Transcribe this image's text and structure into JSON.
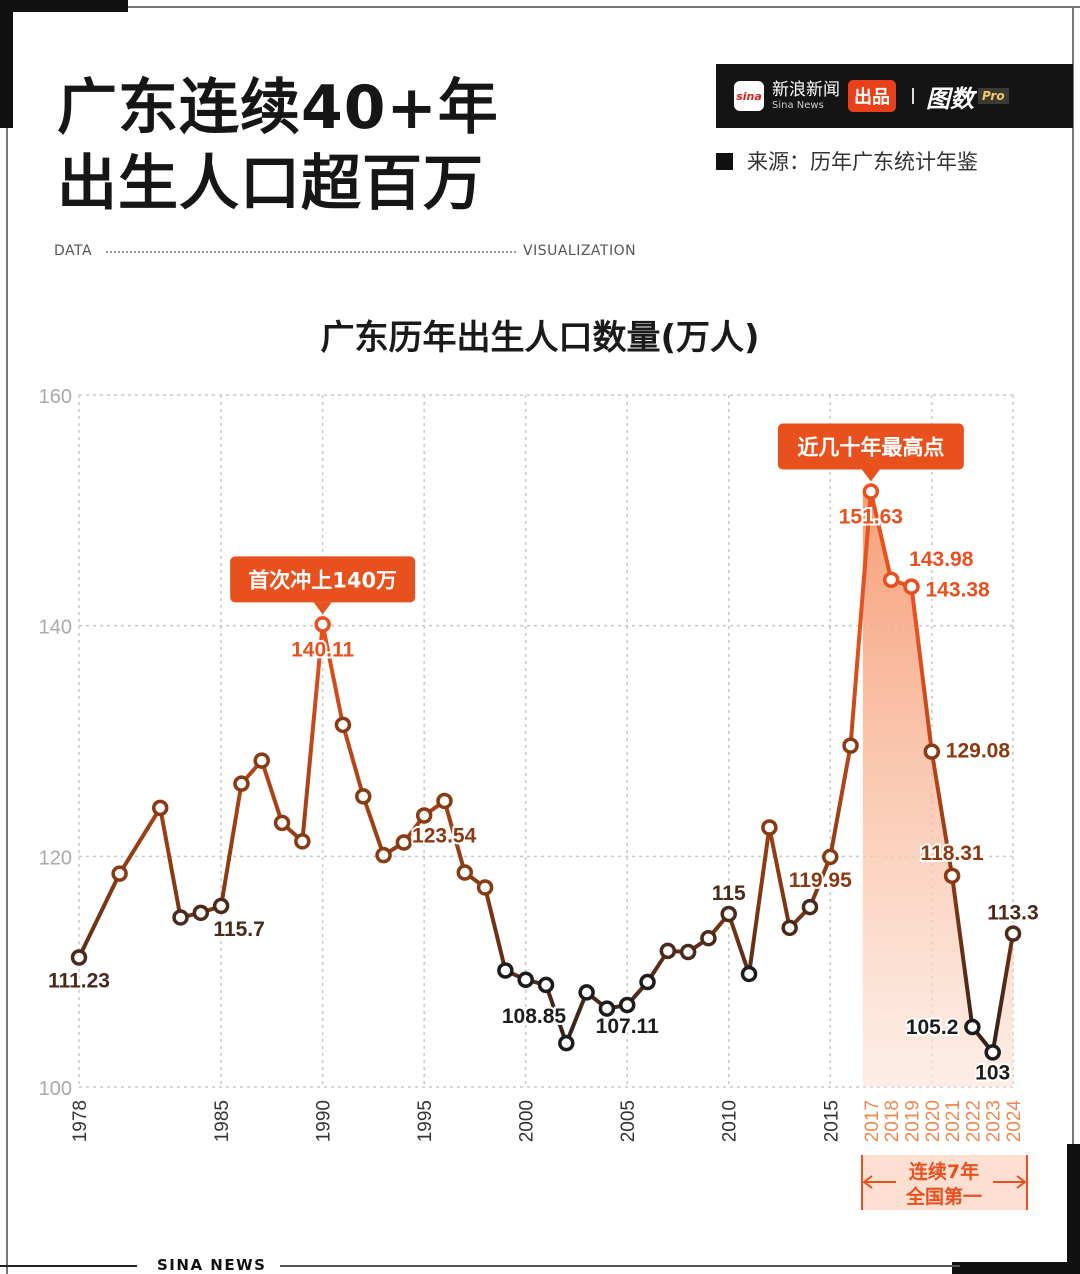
{
  "header": {
    "title_line1": "广东连续40+年",
    "title_line2": "出生人口超百万",
    "data_label": "DATA",
    "vis_label": "VISUALIZATION"
  },
  "brand": {
    "sina_logo": "sina",
    "sina_cn": "新浪新闻",
    "sina_en": "Sina News",
    "produced": "出品",
    "separator": "|",
    "tushu": "图数",
    "pro": "Pro"
  },
  "source": {
    "text": "来源：历年广东统计年鉴"
  },
  "footer": {
    "text": "SINA NEWS"
  },
  "colors": {
    "accent": "#e8501e",
    "dark_line": "#1c1c1c",
    "mid_line": "#8a3a12",
    "highlight_fill": "#f7b79b",
    "grid": "#c8c8c8"
  },
  "annotations": {
    "first_140": "首次冲上140万",
    "highest": "近几十年最高点",
    "streak_line1": "连续7年",
    "streak_line2": "全国第一"
  },
  "chart_data": {
    "type": "line",
    "title": "广东历年出生人口数量(万人)",
    "xlabel": "",
    "ylabel": "",
    "ylim": [
      100,
      160
    ],
    "yticks": [
      100,
      120,
      140,
      160
    ],
    "xticks": [
      "1978",
      "1985",
      "1990",
      "1995",
      "2000",
      "2005",
      "2010",
      "2015",
      "2017",
      "2018",
      "2019",
      "2020",
      "2021",
      "2022",
      "2023",
      "2024"
    ],
    "grid": true,
    "highlight_range": [
      2017,
      2024
    ],
    "x": [
      1978,
      1980,
      1982,
      1983,
      1984,
      1985,
      1986,
      1987,
      1988,
      1989,
      1990,
      1991,
      1992,
      1993,
      1994,
      1995,
      1996,
      1997,
      1998,
      1999,
      2000,
      2001,
      2002,
      2003,
      2004,
      2005,
      2006,
      2007,
      2008,
      2009,
      2010,
      2011,
      2012,
      2013,
      2014,
      2015,
      2016,
      2017,
      2018,
      2019,
      2020,
      2021,
      2022,
      2023,
      2024
    ],
    "values": [
      111.23,
      118.5,
      124.2,
      114.7,
      115.1,
      115.7,
      126.3,
      128.3,
      122.9,
      121.3,
      140.11,
      131.4,
      125.2,
      120.1,
      121.2,
      123.54,
      124.8,
      118.6,
      117.3,
      110.1,
      109.3,
      108.85,
      103.8,
      108.2,
      106.8,
      107.11,
      109.1,
      111.8,
      111.7,
      112.9,
      115,
      109.8,
      122.5,
      113.8,
      115.6,
      119.95,
      129.6,
      151.63,
      143.98,
      143.38,
      129.08,
      118.31,
      105.2,
      103,
      113.3
    ],
    "data_labels": [
      {
        "year": 1978,
        "label": "111.23"
      },
      {
        "year": 1985,
        "label": "115.7"
      },
      {
        "year": 1990,
        "label": "140.11"
      },
      {
        "year": 1995,
        "label": "123.54"
      },
      {
        "year": 2001,
        "label": "108.85"
      },
      {
        "year": 2005,
        "label": "107.11"
      },
      {
        "year": 2010,
        "label": "115"
      },
      {
        "year": 2015,
        "label": "119.95"
      },
      {
        "year": 2017,
        "label": "151.63"
      },
      {
        "year": 2018,
        "label": "143.98"
      },
      {
        "year": 2019,
        "label": "143.38"
      },
      {
        "year": 2020,
        "label": "129.08"
      },
      {
        "year": 2021,
        "label": "118.31"
      },
      {
        "year": 2022,
        "label": "105.2"
      },
      {
        "year": 2023,
        "label": "103"
      },
      {
        "year": 2024,
        "label": "113.3"
      }
    ]
  }
}
